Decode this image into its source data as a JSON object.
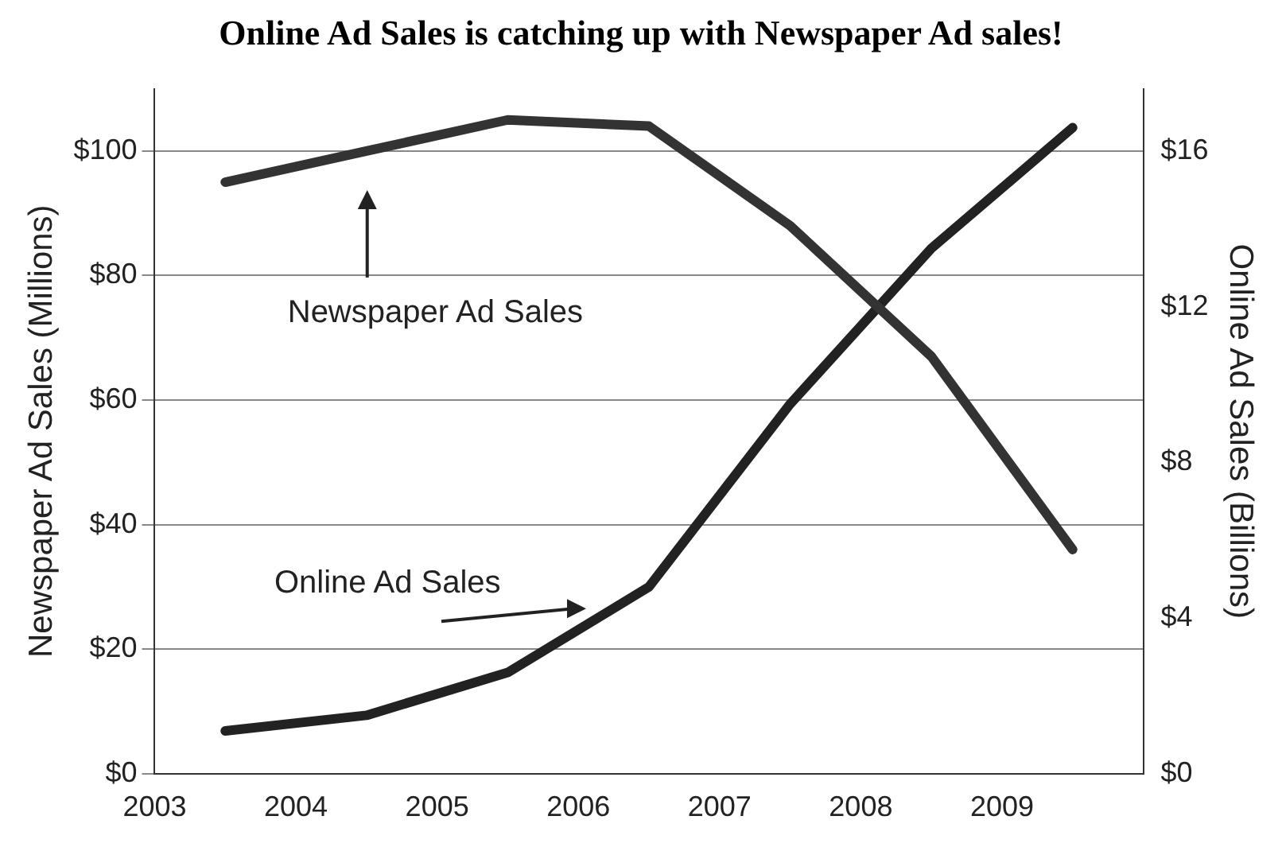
{
  "chart_data": {
    "type": "line",
    "title": "Online Ad Sales is catching up with Newspaper Ad sales!",
    "ylabel": "Newspaper Ad Sales (Millions)",
    "y2label": "Online Ad Sales (Billions)",
    "x": [
      2003.5,
      2004.5,
      2005.5,
      2006.5,
      2007.5,
      2008.5,
      2009.5
    ],
    "xlim": [
      2003,
      2010
    ],
    "xticks": [
      2003,
      2004,
      2005,
      2006,
      2007,
      2008,
      2009
    ],
    "ylim": [
      0,
      110
    ],
    "yticks": [
      {
        "value": 0,
        "label": "$0"
      },
      {
        "value": 20,
        "label": "$20"
      },
      {
        "value": 40,
        "label": "$40"
      },
      {
        "value": 60,
        "label": "$60"
      },
      {
        "value": 80,
        "label": "$80"
      },
      {
        "value": 100,
        "label": "$100"
      }
    ],
    "y2lim": [
      0,
      17.6
    ],
    "y2ticks": [
      {
        "value": 0,
        "label": "$0"
      },
      {
        "value": 4,
        "label": "$4"
      },
      {
        "value": 8,
        "label": "$8"
      },
      {
        "value": 12,
        "label": "$12"
      },
      {
        "value": 16,
        "label": "$16"
      }
    ],
    "series": [
      {
        "color": "#333333",
        "values": [
          95,
          100,
          105,
          104,
          88,
          67,
          36
        ]
      },
      {
        "color": "#222222",
        "axis": "y2",
        "values": [
          1.1,
          1.5,
          2.6,
          4.8,
          9.5,
          13.5,
          16.6
        ]
      }
    ],
    "annotations": [
      "Newspaper Ad Sales",
      {
        "text": "Online Ad Sales",
        "x": 2006.1,
        "y": 26
      }
    ],
    "grid": "y",
    "legend": false,
    "marker": "none",
    "line_style": "solid"
  }
}
